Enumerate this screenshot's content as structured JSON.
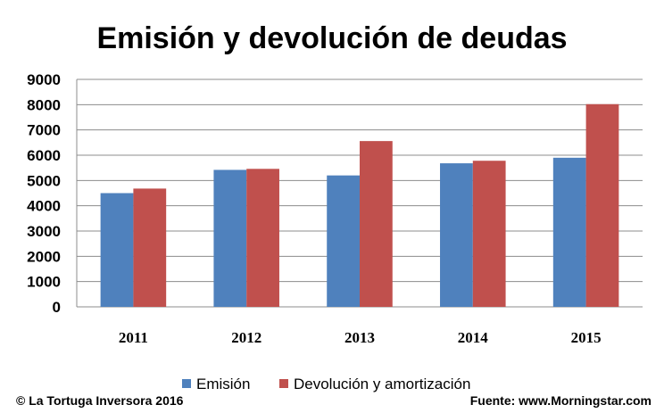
{
  "chart_data": {
    "type": "bar",
    "title": "Emisión y devolución de deudas",
    "categories": [
      "2011",
      "2012",
      "2013",
      "2014",
      "2015"
    ],
    "series": [
      {
        "name": "Emisión",
        "values": [
          4500,
          5420,
          5200,
          5680,
          5900
        ]
      },
      {
        "name": "Devolución y amortización",
        "values": [
          4680,
          5460,
          6560,
          5780,
          8020
        ]
      }
    ],
    "ylim": [
      0,
      9000
    ],
    "yticks": [
      0,
      1000,
      2000,
      3000,
      4000,
      5000,
      6000,
      7000,
      8000,
      9000
    ],
    "grid": true,
    "legend_position": "bottom",
    "colors": {
      "Emisión": "#4f81bd",
      "Devolución y amortización": "#c0504d"
    }
  },
  "footer": {
    "left": "© La Tortuga Inversora 2016",
    "right": "Fuente: www.Morningstar.com"
  }
}
